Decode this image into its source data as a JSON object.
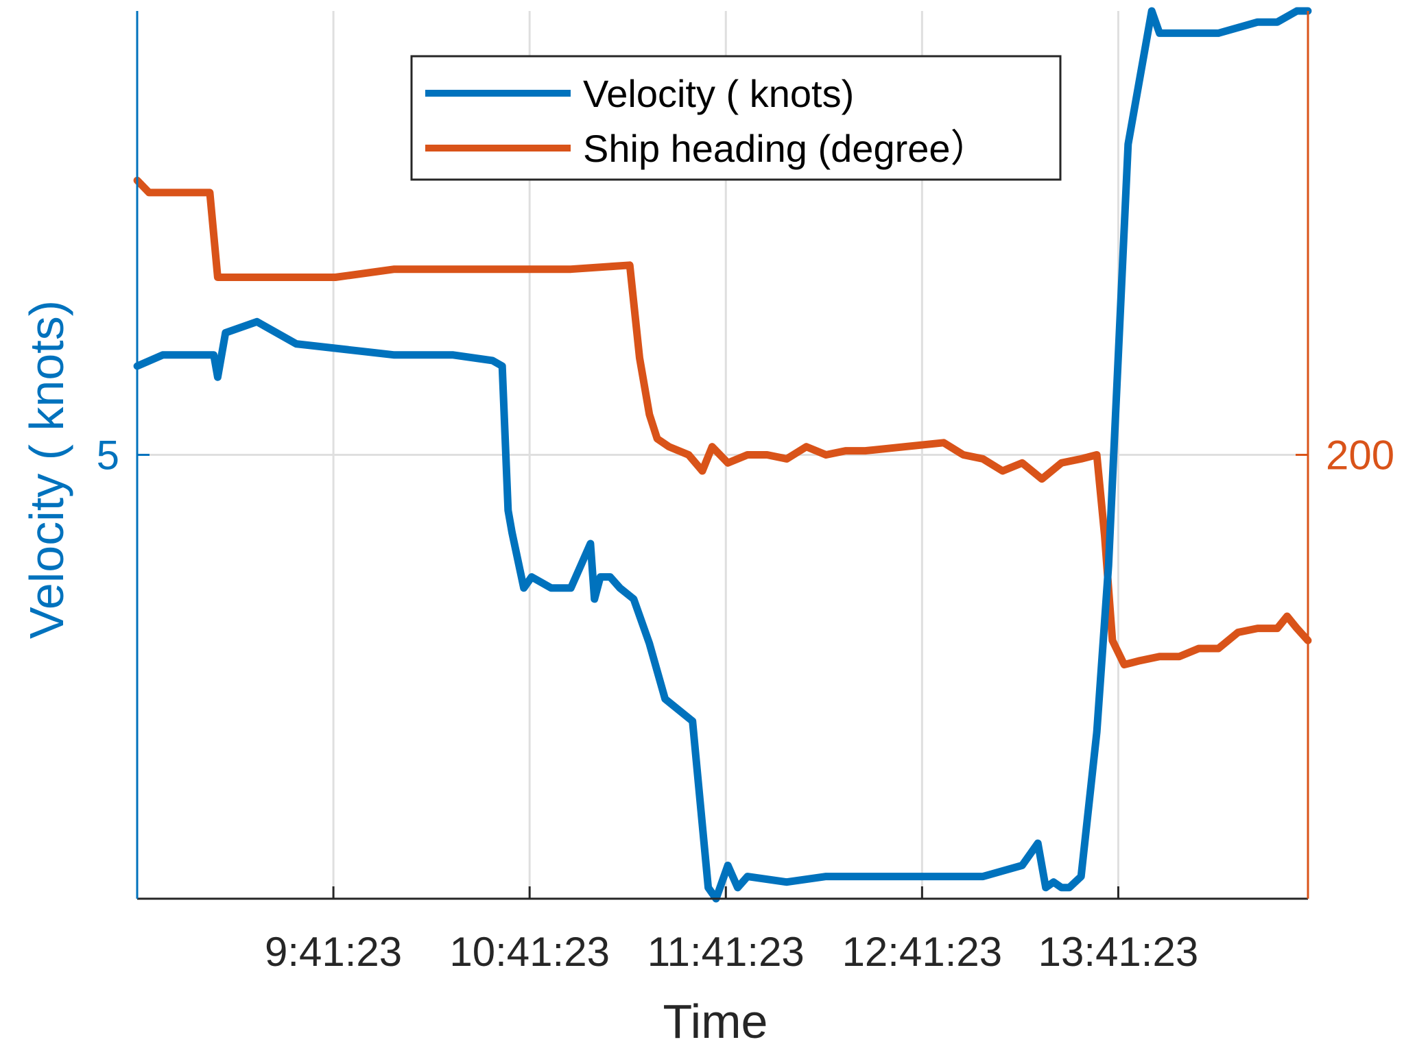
{
  "chart_data": {
    "type": "line",
    "xlabel": "Time",
    "ylabel_left": "Velocity ( knots)",
    "x_ticks": [
      "9:41:23",
      "10:41:23",
      "11:41:23",
      "12:41:23",
      "13:41:23"
    ],
    "x_tick_hours": [
      9.6897,
      10.6897,
      11.6897,
      12.6897,
      13.6897
    ],
    "xlim_hours": [
      8.6897,
      14.6564
    ],
    "y_left_ticks": [
      "5"
    ],
    "y_left_tick_values": [
      5
    ],
    "ylim_left": [
      1,
      9
    ],
    "y_right_ticks": [
      "200"
    ],
    "y_right_tick_values": [
      200
    ],
    "ylim_right": [
      145,
      255
    ],
    "grid": true,
    "legend_placement": "top-center",
    "colors": {
      "velocity": "#0072BD",
      "heading": "#D95319",
      "grid": "#DFDFDF",
      "axis": "#262626"
    },
    "series": [
      {
        "name": "Velocity ( knots)",
        "axis": "left",
        "x": [
          8.69,
          8.82,
          9.0,
          9.08,
          9.1,
          9.14,
          9.3,
          9.5,
          10.0,
          10.3,
          10.5,
          10.55,
          10.58,
          10.6,
          10.66,
          10.7,
          10.8,
          10.9,
          11.0,
          11.02,
          11.05,
          11.1,
          11.15,
          11.22,
          11.3,
          11.38,
          11.52,
          11.6,
          11.64,
          11.7,
          11.75,
          11.8,
          12.0,
          12.2,
          12.4,
          12.6,
          12.8,
          13.0,
          13.2,
          13.28,
          13.32,
          13.36,
          13.4,
          13.44,
          13.5,
          13.58,
          13.64,
          13.74,
          13.82,
          13.86,
          13.9,
          14.0,
          14.2,
          14.4,
          14.5,
          14.6,
          14.656
        ],
        "y": [
          5.8,
          5.9,
          5.9,
          5.9,
          5.7,
          6.1,
          6.2,
          6.0,
          5.9,
          5.9,
          5.85,
          5.8,
          4.5,
          4.3,
          3.8,
          3.9,
          3.8,
          3.8,
          4.2,
          3.7,
          3.9,
          3.9,
          3.8,
          3.7,
          3.3,
          2.8,
          2.6,
          1.1,
          1.0,
          1.3,
          1.1,
          1.2,
          1.15,
          1.2,
          1.2,
          1.2,
          1.2,
          1.2,
          1.3,
          1.5,
          1.1,
          1.15,
          1.1,
          1.1,
          1.2,
          2.5,
          4.0,
          7.8,
          8.6,
          9.0,
          8.8,
          8.8,
          8.8,
          8.9,
          8.9,
          9.0,
          9.0
        ],
        "values": [
          5.8,
          5.9,
          5.9,
          5.9,
          5.7,
          6.1,
          6.2,
          6.0,
          5.9,
          5.9,
          5.85,
          5.8,
          4.5,
          4.3,
          3.8,
          3.9,
          3.8,
          3.8,
          4.2,
          3.7,
          3.9,
          3.9,
          3.8,
          3.7,
          3.3,
          2.8,
          2.6,
          1.1,
          1.0,
          1.3,
          1.1,
          1.2,
          1.15,
          1.2,
          1.2,
          1.2,
          1.2,
          1.2,
          1.3,
          1.5,
          1.1,
          1.15,
          1.1,
          1.1,
          1.2,
          2.5,
          4.0,
          7.8,
          8.6,
          9.0,
          8.8,
          8.8,
          8.8,
          8.9,
          8.9,
          9.0,
          9.0
        ]
      },
      {
        "name": "Ship heading (degree）",
        "axis": "right",
        "x": [
          8.69,
          8.75,
          8.9,
          9.06,
          9.1,
          9.2,
          9.4,
          9.7,
          10.0,
          10.3,
          10.6,
          10.9,
          11.2,
          11.25,
          11.3,
          11.34,
          11.4,
          11.5,
          11.57,
          11.62,
          11.7,
          11.8,
          11.9,
          12.0,
          12.1,
          12.2,
          12.3,
          12.4,
          12.6,
          12.8,
          12.9,
          13.0,
          13.1,
          13.2,
          13.3,
          13.4,
          13.5,
          13.58,
          13.62,
          13.66,
          13.72,
          13.8,
          13.9,
          14.0,
          14.1,
          14.2,
          14.3,
          14.4,
          14.5,
          14.55,
          14.6,
          14.656
        ],
        "y": [
          234,
          232.5,
          232.5,
          232.5,
          222,
          222,
          222,
          222,
          223,
          223,
          223,
          223,
          223.5,
          212,
          205,
          202,
          201,
          200,
          198,
          201,
          199,
          200,
          200,
          199.5,
          201,
          200,
          200.5,
          200.5,
          201,
          201.5,
          200,
          199.5,
          198,
          199,
          197,
          199,
          199.5,
          200,
          190,
          177,
          174,
          174.5,
          175,
          175,
          176,
          176,
          178,
          178.5,
          178.5,
          180,
          178.5,
          177
        ],
        "values": [
          234,
          232.5,
          232.5,
          232.5,
          222,
          222,
          222,
          222,
          223,
          223,
          223,
          223,
          223.5,
          212,
          205,
          202,
          201,
          200,
          198,
          201,
          199,
          200,
          200,
          199.5,
          201,
          200,
          200.5,
          200.5,
          201,
          201.5,
          200,
          199.5,
          198,
          199,
          197,
          199,
          199.5,
          200,
          190,
          177,
          174,
          174.5,
          175,
          175,
          176,
          176,
          178,
          178.5,
          178.5,
          180,
          178.5,
          177
        ]
      }
    ]
  }
}
